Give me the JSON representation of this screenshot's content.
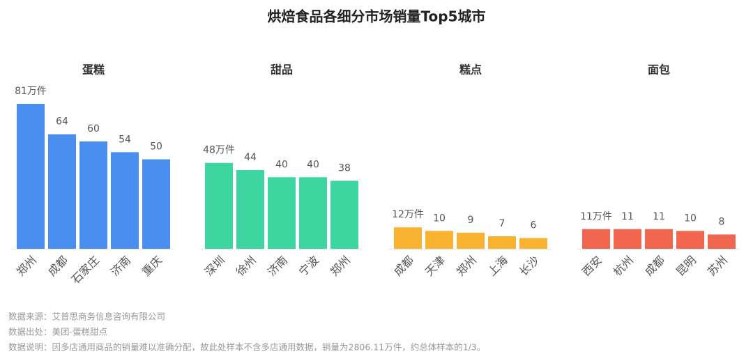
{
  "title": "烘焙食品各细分市场销量Top5城市",
  "chart_data": [
    {
      "type": "bar",
      "title": "蛋糕",
      "categories": [
        "郑州",
        "成都",
        "石家庄",
        "济南",
        "重庆"
      ],
      "values": [
        81,
        64,
        60,
        54,
        50
      ],
      "value_labels": [
        "81万件",
        "64",
        "60",
        "54",
        "50"
      ],
      "color": "#4a8ff0"
    },
    {
      "type": "bar",
      "title": "甜品",
      "categories": [
        "深圳",
        "徐州",
        "济南",
        "宁波",
        "郑州"
      ],
      "values": [
        48,
        44,
        40,
        40,
        38
      ],
      "value_labels": [
        "48万件",
        "44",
        "40",
        "40",
        "38"
      ],
      "color": "#3ed5a0"
    },
    {
      "type": "bar",
      "title": "糕点",
      "categories": [
        "成都",
        "天津",
        "郑州",
        "上海",
        "长沙"
      ],
      "values": [
        12,
        10,
        9,
        7,
        6
      ],
      "value_labels": [
        "12万件",
        "10",
        "9",
        "7",
        "6"
      ],
      "color": "#f9b331"
    },
    {
      "type": "bar",
      "title": "面包",
      "categories": [
        "西安",
        "杭州",
        "成都",
        "昆明",
        "苏州"
      ],
      "values": [
        11,
        11,
        11,
        10,
        8
      ],
      "value_labels": [
        "11万件",
        "11",
        "11",
        "10",
        "8"
      ],
      "color": "#f0664f"
    }
  ],
  "notes": [
    "数据来源：艾普思商务信息咨询有限公司",
    "数据出处：美团-蛋糕甜点",
    "数据说明：因多店通用商品的销量难以准确分配，故此处样本不含多店通用数据，销量为2806.11万件，约总体样本的1/3。"
  ]
}
